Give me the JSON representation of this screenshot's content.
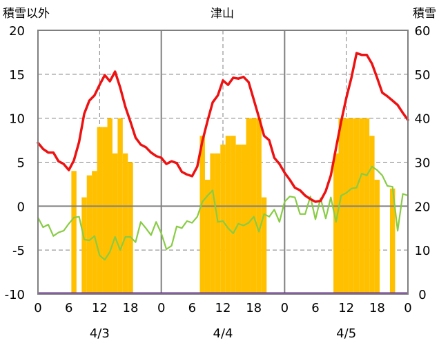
{
  "chart_data": {
    "type": "bar+line",
    "title": "津山",
    "left_axis_label": "積雪以外",
    "right_axis_label": "積雪",
    "left_ylim": [
      -10,
      20
    ],
    "left_yticks": [
      "20",
      "15",
      "10",
      "5",
      "0",
      "-5",
      "-10"
    ],
    "right_ylim": [
      0,
      60
    ],
    "right_yticks": [
      "60",
      "50",
      "40",
      "30",
      "20",
      "10",
      "0"
    ],
    "hours_per_day": 24,
    "xtick_labels": [
      "0",
      "6",
      "12",
      "18",
      "0",
      "6",
      "12",
      "18",
      "0",
      "6",
      "12",
      "18",
      "0"
    ],
    "day_labels": [
      "4/3",
      "4/4",
      "4/5"
    ],
    "colors": {
      "temperature": "#ee1111",
      "other": "#88cc44",
      "snow": "#ffc000",
      "baseline": "#7030a0",
      "frame": "#7f7f7f",
      "grid": "#7f7f7f"
    },
    "series": [
      {
        "name": "red_line",
        "axis": "left",
        "values": [
          7.2,
          6.5,
          6.1,
          6.1,
          5.1,
          4.8,
          4.1,
          5.2,
          7.3,
          10.5,
          12,
          12.6,
          13.8,
          14.9,
          14.2,
          15.3,
          13.5,
          11.3,
          9.6,
          7.8,
          7,
          6.7,
          6.1,
          5.7,
          5.5,
          4.8,
          5.1,
          4.9,
          3.9,
          3.6,
          3.4,
          4.5,
          7.4,
          9.7,
          11.8,
          12.6,
          14.3,
          13.8,
          14.6,
          14.5,
          14.7,
          14.1,
          12.1,
          10.1,
          8,
          7.5,
          5.5,
          4.8,
          3.8,
          3,
          2.1,
          1.8,
          1.2,
          0.8,
          0.5,
          0.6,
          1.7,
          3.5,
          6.6,
          9.6,
          12.3,
          14.6,
          17.4,
          17.2,
          17.2,
          16.2,
          14.6,
          12.9,
          12.5,
          12,
          11.5,
          10.6,
          9.8
        ]
      },
      {
        "name": "green_line",
        "axis": "left",
        "values": [
          -1.3,
          -2.4,
          -2.1,
          -3.4,
          -3,
          -2.8,
          -2,
          -1.3,
          -1.2,
          -3.8,
          -3.9,
          -3.4,
          -5.6,
          -6.1,
          -5.2,
          -3.5,
          -5,
          -3.5,
          -3.5,
          -4.1,
          -1.8,
          -2.5,
          -3.3,
          -1.8,
          -3.1,
          -4.9,
          -4.5,
          -2.3,
          -2.5,
          -1.7,
          -1.9,
          -1.2,
          0.5,
          1.2,
          1.8,
          -1.8,
          -1.7,
          -2.5,
          -3.1,
          -2,
          -2.2,
          -1.9,
          -1.2,
          -2.9,
          -0.9,
          -1.2,
          -0.4,
          -1.8,
          0.5,
          1.1,
          1,
          -0.9,
          -0.9,
          1.1,
          -1.5,
          0.9,
          -1.4,
          1,
          -1.8,
          1.2,
          1.5,
          2,
          2.1,
          3.7,
          3.5,
          4.5,
          4.1,
          3.5,
          2.3,
          2.2,
          -2.8,
          1.4,
          1.2
        ]
      }
    ],
    "bars": {
      "name": "snow_depth",
      "axis": "right",
      "values": [
        0,
        0,
        0,
        0,
        0,
        0,
        0,
        28,
        0,
        22,
        27,
        28,
        38,
        38,
        40,
        32,
        40,
        32,
        30,
        0,
        0,
        0,
        0,
        0,
        0,
        0,
        0,
        0,
        0,
        0,
        0,
        0,
        36,
        26,
        32,
        32,
        34,
        36,
        36,
        34,
        34,
        40,
        40,
        40,
        22,
        0,
        0,
        0,
        0,
        0,
        0,
        0,
        0,
        0,
        0,
        0,
        0,
        0,
        32,
        40,
        40,
        40,
        40,
        40,
        40,
        36,
        26,
        0,
        0,
        24,
        0,
        0,
        0
      ]
    }
  }
}
